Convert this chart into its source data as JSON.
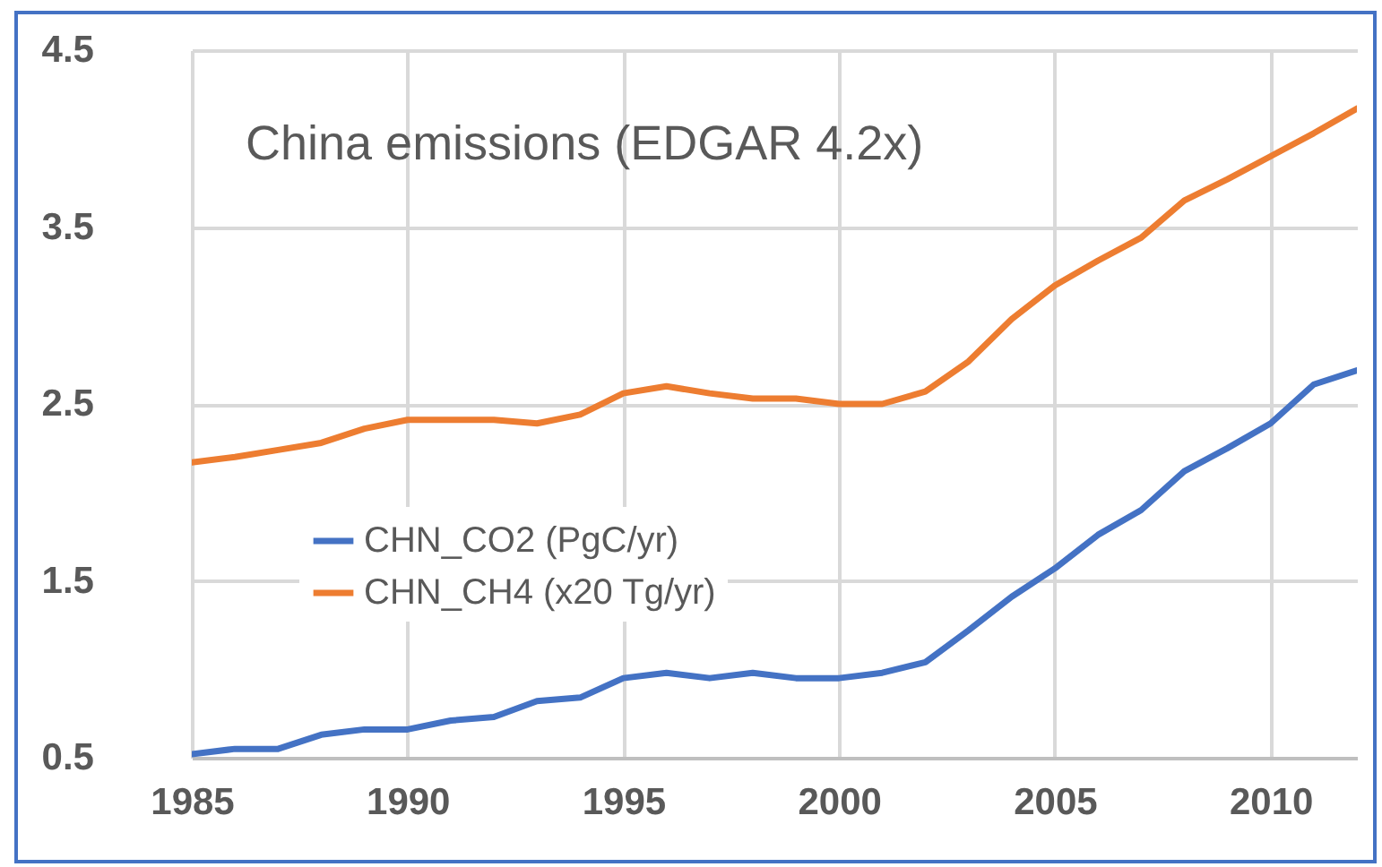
{
  "chart_data": {
    "type": "line",
    "title": "China emissions (EDGAR 4.2x)",
    "x": [
      1985,
      1986,
      1987,
      1988,
      1989,
      1990,
      1991,
      1992,
      1993,
      1994,
      1995,
      1996,
      1997,
      1998,
      1999,
      2000,
      2001,
      2002,
      2003,
      2004,
      2005,
      2006,
      2007,
      2008,
      2009,
      2010,
      2011,
      2012
    ],
    "series": [
      {
        "name": "CHN_CO2 (PgC/yr)",
        "color": "#4472c4",
        "values": [
          0.52,
          0.55,
          0.55,
          0.63,
          0.66,
          0.66,
          0.71,
          0.73,
          0.82,
          0.84,
          0.95,
          0.98,
          0.95,
          0.98,
          0.95,
          0.95,
          0.98,
          1.04,
          1.22,
          1.41,
          1.57,
          1.76,
          1.9,
          2.12,
          2.25,
          2.39,
          2.61,
          2.69
        ]
      },
      {
        "name": "CHN_CH4 (x20 Tg/yr)",
        "color": "#ed7d31",
        "values": [
          2.17,
          2.2,
          2.24,
          2.28,
          2.36,
          2.41,
          2.41,
          2.41,
          2.39,
          2.44,
          2.56,
          2.6,
          2.56,
          2.53,
          2.53,
          2.5,
          2.5,
          2.57,
          2.74,
          2.98,
          3.17,
          3.31,
          3.44,
          3.65,
          3.77,
          3.9,
          4.03,
          4.17
        ]
      }
    ],
    "xlim": [
      1985,
      2012
    ],
    "xticks": [
      1985,
      1990,
      1995,
      2000,
      2005,
      2010
    ],
    "ylim": [
      0.5,
      4.5
    ],
    "yticks": [
      0.5,
      1.5,
      2.5,
      3.5,
      4.5
    ],
    "grid": true,
    "legend": "left",
    "line_style": "solid"
  }
}
